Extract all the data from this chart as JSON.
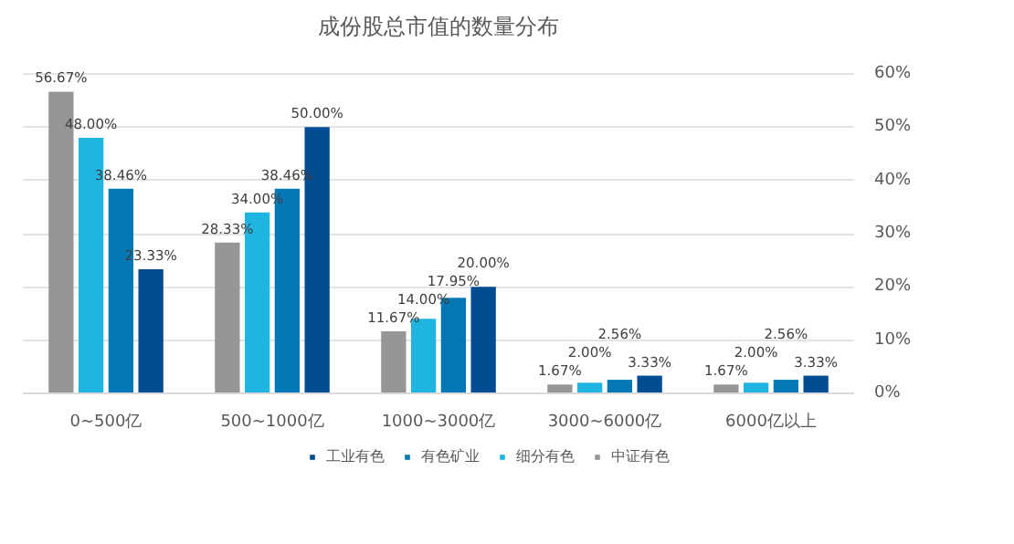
{
  "chart_data": {
    "type": "bar",
    "title": "成份股总市值的数量分布",
    "categories": [
      "0~500亿",
      "500~1000亿",
      "1000~3000亿",
      "3000~6000亿",
      "6000亿以上"
    ],
    "series": [
      {
        "name": "中证有色",
        "color": "#969696",
        "values": [
          56.67,
          28.33,
          11.67,
          1.67,
          1.67
        ],
        "value_labels": [
          "56.67%",
          "28.33%",
          "11.67%",
          "1.67%",
          "1.67%"
        ]
      },
      {
        "name": "细分有色",
        "color": "#1fb5e0",
        "values": [
          48.0,
          34.0,
          14.0,
          2.0,
          2.0
        ],
        "value_labels": [
          "48.00%",
          "34.00%",
          "14.00%",
          "2.00%",
          "2.00%"
        ]
      },
      {
        "name": "有色矿业",
        "color": "#0477b5",
        "values": [
          38.46,
          38.46,
          17.95,
          2.56,
          2.56
        ],
        "value_labels": [
          "38.46%",
          "38.46%",
          "17.95%",
          "2.56%",
          "2.56%"
        ]
      },
      {
        "name": "工业有色",
        "color": "#004c93",
        "values": [
          23.33,
          50.0,
          20.0,
          3.33,
          3.33
        ],
        "value_labels": [
          "23.33%",
          "50.00%",
          "20.00%",
          "3.33%",
          "3.33%"
        ]
      }
    ],
    "ylim": [
      0,
      60
    ],
    "yticks": [
      {
        "value": 0,
        "label": "0%"
      },
      {
        "value": 10,
        "label": "10%"
      },
      {
        "value": 20,
        "label": "20%"
      },
      {
        "value": 30,
        "label": "30%"
      },
      {
        "value": 40,
        "label": "40%"
      },
      {
        "value": 50,
        "label": "50%"
      },
      {
        "value": 60,
        "label": "60%"
      }
    ],
    "grid": "y",
    "legend": "bottom"
  }
}
